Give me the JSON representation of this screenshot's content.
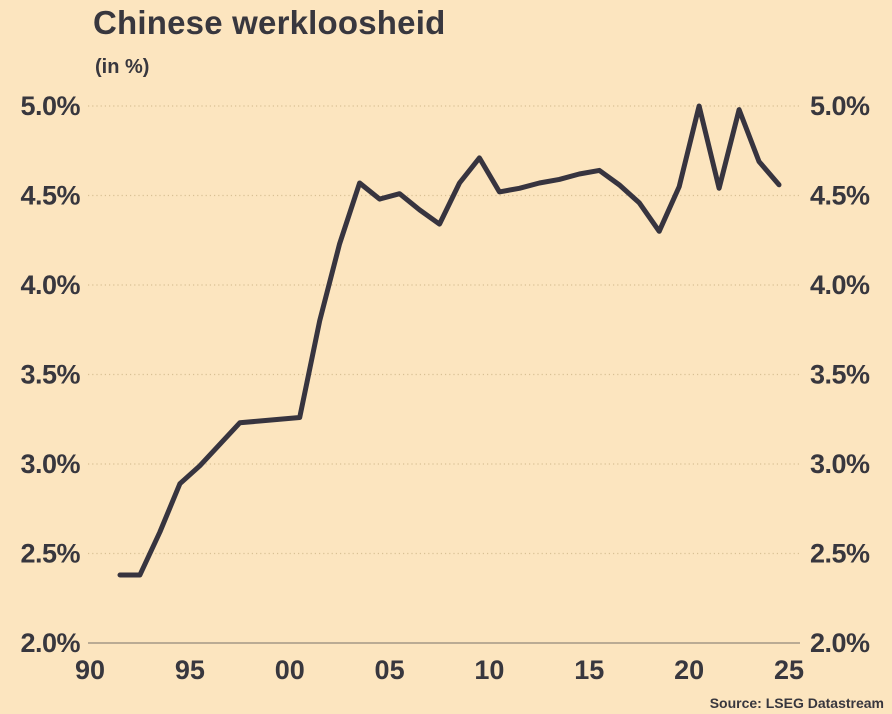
{
  "header": {
    "title": "Chinese werkloosheid",
    "subtitle": "(in %)"
  },
  "footer": {
    "source": "Source: LSEG Datastream"
  },
  "colors": {
    "background": "#fce5bf",
    "line": "#37343f",
    "text": "#38373e",
    "gridline": "#d8c094",
    "axis_line": "#93897a"
  },
  "chart_data": {
    "type": "line",
    "title": "Chinese werkloosheid",
    "subtitle": "(in %)",
    "xlabel": "",
    "ylabel": "",
    "ylim": [
      2.0,
      5.0
    ],
    "xlim": [
      1989.9,
      2025.6
    ],
    "grid": "horizontal-dotted",
    "legend": "none",
    "point_alignment": "mid-year",
    "series": [
      {
        "name": "Chinese werkloosheid (%)",
        "x": [
          1991,
          1992,
          1993,
          1994,
          1995,
          1996,
          1997,
          1998,
          1999,
          2000,
          2001,
          2002,
          2003,
          2004,
          2005,
          2006,
          2007,
          2008,
          2009,
          2010,
          2011,
          2012,
          2013,
          2014,
          2015,
          2016,
          2017,
          2018,
          2019,
          2020,
          2021,
          2022,
          2023,
          2024
        ],
        "values": [
          2.38,
          2.38,
          2.62,
          2.89,
          2.99,
          3.11,
          3.23,
          3.24,
          3.25,
          3.26,
          3.8,
          4.23,
          4.57,
          4.48,
          4.51,
          4.42,
          4.34,
          4.57,
          4.71,
          4.52,
          4.54,
          4.57,
          4.59,
          4.62,
          4.64,
          4.56,
          4.46,
          4.3,
          4.55,
          5.0,
          4.54,
          4.98,
          4.69,
          4.56
        ]
      }
    ],
    "y_ticks": {
      "values": [
        5.0,
        4.5,
        4.0,
        3.5,
        3.0,
        2.5,
        2.0
      ],
      "labels": [
        "5.0%",
        "4.5%",
        "4.0%",
        "3.5%",
        "3.0%",
        "2.5%",
        "2.0%"
      ],
      "position": "both-sides"
    },
    "x_ticks": {
      "values": [
        1990,
        1995,
        2000,
        2005,
        2010,
        2015,
        2020,
        2025
      ],
      "labels": [
        "90",
        "95",
        "00",
        "05",
        "10",
        "15",
        "20",
        "25"
      ]
    },
    "source": "Source: LSEG Datastream"
  }
}
